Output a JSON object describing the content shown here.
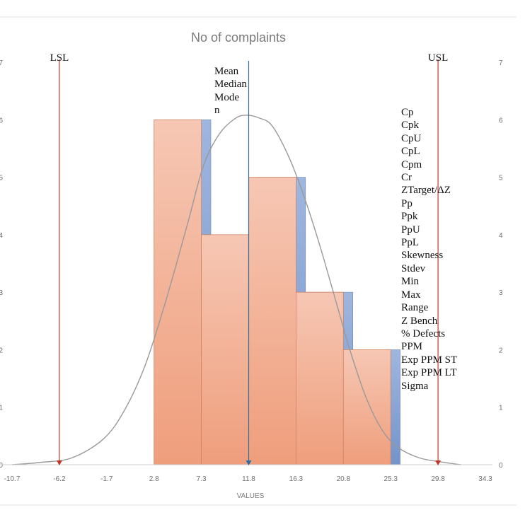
{
  "chart_data": {
    "type": "bar",
    "title": "No of complaints",
    "xlabel": "VALUES",
    "ylabel": "",
    "x_ticks": [
      -10.7,
      -6.2,
      -1.7,
      2.8,
      7.3,
      11.8,
      16.3,
      20.8,
      25.3,
      29.8,
      34.3
    ],
    "x_tick_labels": [
      "-10.7",
      "-6.2",
      "-1.7",
      "2.8",
      "7.3",
      "11.8",
      "16.3",
      "20.8",
      "25.3",
      "29.8",
      "34.3"
    ],
    "xlim": [
      -10.7,
      34.3
    ],
    "ylim": [
      0,
      7
    ],
    "y_ticks": [
      0,
      1,
      2,
      3,
      4,
      5,
      6,
      7
    ],
    "y_tick_labels": [
      "0",
      "1",
      "2",
      "3",
      "4",
      "5",
      "6",
      "7"
    ],
    "bins": [
      {
        "start": 2.8,
        "end": 7.3,
        "value": 6
      },
      {
        "start": 7.3,
        "end": 11.8,
        "value": 4
      },
      {
        "start": 11.8,
        "end": 16.3,
        "value": 5
      },
      {
        "start": 16.3,
        "end": 20.8,
        "value": 3
      },
      {
        "start": 20.8,
        "end": 25.3,
        "value": 2
      }
    ],
    "shadow_bins": [
      {
        "start": 3.7,
        "end": 8.2,
        "value": 6
      },
      {
        "start": 12.7,
        "end": 17.2,
        "value": 5
      },
      {
        "start": 17.2,
        "end": 21.7,
        "value": 3
      },
      {
        "start": 21.7,
        "end": 26.2,
        "value": 2
      }
    ],
    "curve": {
      "x": [
        -10.7,
        -8.0,
        -5.0,
        -2.0,
        0.0,
        2.0,
        4.0,
        6.0,
        7.5,
        9.0,
        10.5,
        11.6,
        12.8,
        14.0,
        15.5,
        17.0,
        18.5,
        20.0,
        21.5,
        23.0,
        24.5,
        26.0,
        28.0,
        30.0,
        32.0
      ],
      "y": [
        0.0,
        0.04,
        0.12,
        0.45,
        0.95,
        1.75,
        2.9,
        4.2,
        5.2,
        5.75,
        6.02,
        6.08,
        6.03,
        5.9,
        5.4,
        4.7,
        3.85,
        2.9,
        1.95,
        1.15,
        0.6,
        0.3,
        0.12,
        0.05,
        0.0
      ]
    },
    "reference_lines": [
      {
        "name": "LSL",
        "x": -6.2,
        "color": "#c0392b"
      },
      {
        "name": "USL",
        "x": 29.8,
        "color": "#c0392b"
      },
      {
        "name": "mean",
        "x": 11.8,
        "color": "#2e6da4"
      }
    ],
    "grid": false,
    "legend": "none",
    "colors": {
      "bar_fill": "#f3b49a",
      "bar_stroke": "#d08463",
      "shadow_fill": "#7f9fd4",
      "curve": "#999999",
      "limit_line": "#c0392b",
      "mean_line": "#2e6da4",
      "axis": "#cfcfcf",
      "tick_text": "#6f6f6f",
      "title_text": "#7a7a7a"
    }
  },
  "center_labels": [
    "Mean",
    "Median",
    "Mode",
    "n"
  ],
  "stats_labels": [
    "Cp",
    "Cpk",
    "CpU",
    "CpL",
    "Cpm",
    "Cr",
    "ZTarget/ΔZ",
    "Pp",
    "Ppk",
    "PpU",
    "PpL",
    "Skewness",
    "Stdev",
    "Min",
    "Max",
    "Range",
    "Z Bench",
    "% Defects",
    "PPM",
    "Exp PPM ST",
    "Exp PPM LT",
    "Sigma"
  ]
}
